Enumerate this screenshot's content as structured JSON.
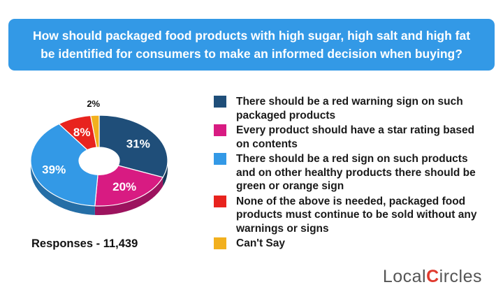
{
  "title": "How should packaged food products with high sugar, high salt and high fat be identified for consumers to make an informed decision when buying?",
  "responses": "Responses - 11,439",
  "logo": {
    "prefix": "Local",
    "c": "C",
    "suffix": "ircles"
  },
  "chart_data": {
    "type": "pie",
    "style": "3d-donut",
    "legend_position": "right",
    "slices": [
      {
        "label": "There should be a red warning sign on such packaged products",
        "value": 31,
        "display": "31%",
        "color": "#1f4e79"
      },
      {
        "label": "Every product should have a star rating based on contents",
        "value": 20,
        "display": "20%",
        "color": "#d81b82"
      },
      {
        "label": "There should be a red sign on such products and on other healthy products there should be green or orange sign",
        "value": 39,
        "display": "39%",
        "color": "#3399e6"
      },
      {
        "label": "None of the above is needed, packaged food products must continue to be sold without any warnings or signs",
        "value": 8,
        "display": "8%",
        "color": "#e8231e"
      },
      {
        "label": "Can't Say",
        "value": 2,
        "display": "2%",
        "color": "#f2b01e"
      }
    ]
  }
}
